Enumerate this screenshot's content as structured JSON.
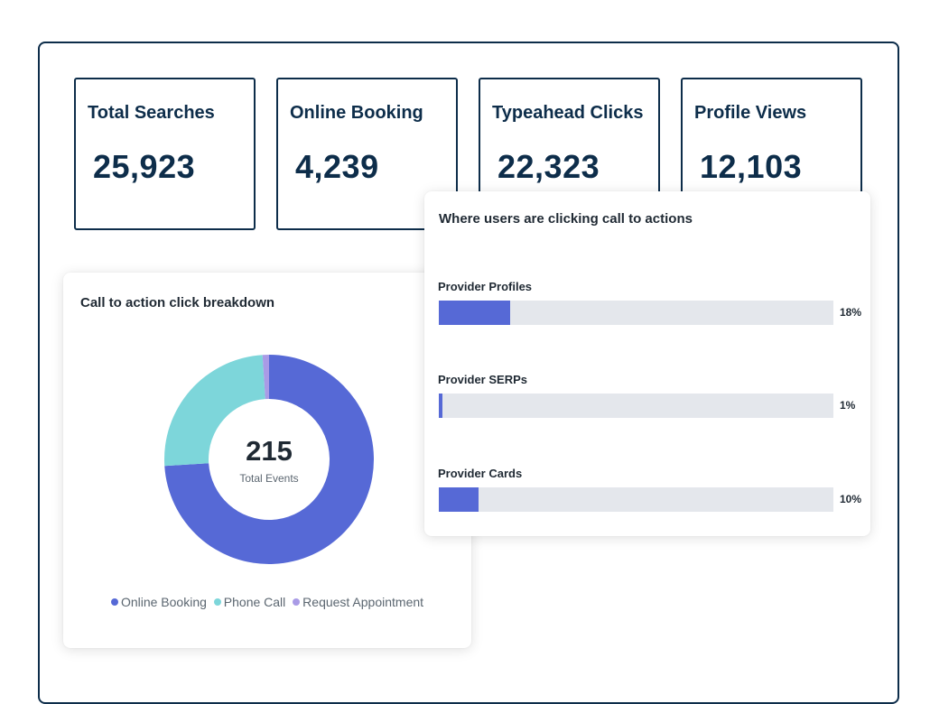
{
  "stats": [
    {
      "label": "Total Searches",
      "value": "25,923"
    },
    {
      "label": "Online Booking",
      "value": "4,239"
    },
    {
      "label": "Typeahead Clicks",
      "value": "22,323"
    },
    {
      "label": "Profile Views",
      "value": "12,103"
    }
  ],
  "donut": {
    "title": "Call to action click breakdown",
    "center_value": "215",
    "center_label": "Total Events"
  },
  "bars_panel": {
    "title": "Where users are clicking call to actions"
  },
  "colors": {
    "online_booking": "#5669d6",
    "phone_call": "#7dd6da",
    "request_appointment": "#a99be6",
    "bar_fill": "#5669d6",
    "bar_track": "#e4e7ec",
    "navy": "#0d2d4a"
  },
  "chart_data": [
    {
      "type": "pie",
      "title": "Call to action click breakdown",
      "categories": [
        "Online Booking",
        "Phone Call",
        "Request Appointment"
      ],
      "values": [
        74,
        25,
        1
      ],
      "center_value": "215",
      "center_label": "Total Events",
      "legend": "bottom"
    },
    {
      "type": "bar",
      "orientation": "horizontal",
      "title": "Where users are clicking call to actions",
      "categories": [
        "Provider Profiles",
        "Provider SERPs",
        "Provider Cards"
      ],
      "values": [
        18,
        1,
        10
      ],
      "value_labels": [
        "18%",
        "1%",
        "10%"
      ],
      "xlim": [
        0,
        100
      ]
    }
  ]
}
